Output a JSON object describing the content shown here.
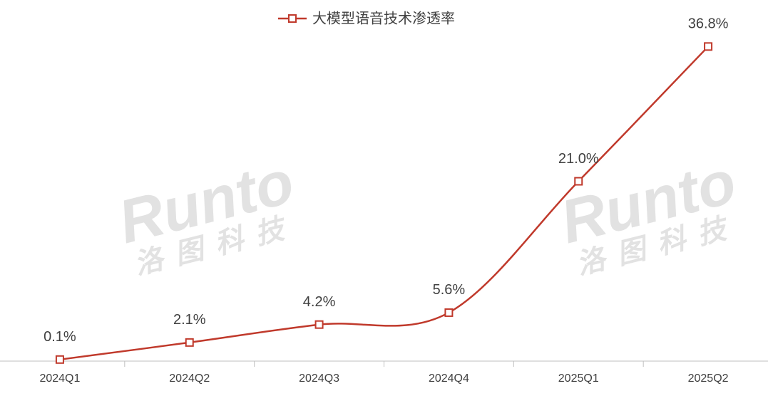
{
  "chart_data": {
    "type": "line",
    "title": "大模型语音技术渗透率",
    "categories": [
      "2024Q1",
      "2024Q2",
      "2024Q3",
      "2024Q4",
      "2025Q1",
      "2025Q2"
    ],
    "series": [
      {
        "name": "大模型语音技术渗透率",
        "color": "#c0392b",
        "values": [
          0.1,
          2.1,
          4.2,
          5.6,
          21.0,
          36.8
        ],
        "value_labels": [
          "0.1%",
          "2.1%",
          "4.2%",
          "5.6%",
          "21.0%",
          "36.8%"
        ]
      }
    ],
    "ylim": [
      0,
      40
    ],
    "smooth": true,
    "legend": "top",
    "watermark": {
      "brand": "Runto",
      "name": "洛图科技"
    }
  }
}
